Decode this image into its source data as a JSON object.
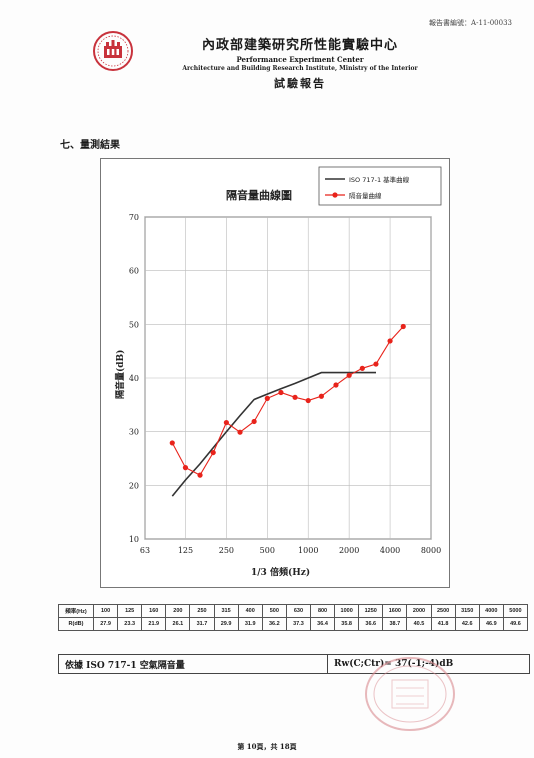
{
  "header": {
    "report_no": "報告書編號：A-11-00033",
    "org_cn": "內政部建築研究所性能實驗中心",
    "org_en_line1": "Performance Experiment Center",
    "org_en_line2": "Architecture and Building Research Institute, Ministry of the Interior",
    "report_title": "試驗報告"
  },
  "section": {
    "title": "七、量測結果"
  },
  "chart_data": {
    "type": "line",
    "title": "隔音量曲線圖",
    "xlabel": "1/3 倍頻(Hz)",
    "ylabel": "隔音量(dB)",
    "x_scale": "log",
    "xlim": [
      63,
      8000
    ],
    "ylim": [
      10,
      70
    ],
    "x_ticks": [
      63,
      125,
      250,
      500,
      1000,
      2000,
      4000,
      8000
    ],
    "x_tick_labels": [
      "63",
      "125",
      "250",
      "500",
      "1000",
      "2000",
      "4000",
      "8000"
    ],
    "y_ticks": [
      10,
      20,
      30,
      40,
      50,
      60,
      70
    ],
    "legend_position": "top-right",
    "series": [
      {
        "name": "ISO 717-1 基準曲線",
        "color": "#333333",
        "marker": "none",
        "x": [
          100,
          125,
          160,
          200,
          250,
          315,
          400,
          500,
          630,
          800,
          1000,
          1250,
          1600,
          2000,
          2500,
          3150
        ],
        "y": [
          18,
          21,
          24,
          27,
          30,
          33,
          36,
          37,
          38,
          39,
          40,
          41,
          41,
          41,
          41,
          41
        ]
      },
      {
        "name": "隔音量曲線",
        "color": "#e8231b",
        "marker": "circle",
        "x": [
          100,
          125,
          160,
          200,
          250,
          315,
          400,
          500,
          630,
          800,
          1000,
          1250,
          1600,
          2000,
          2500,
          3150,
          4000,
          5000
        ],
        "y": [
          27.9,
          23.3,
          21.9,
          26.1,
          31.7,
          29.9,
          31.9,
          36.2,
          37.3,
          36.4,
          35.8,
          36.6,
          38.7,
          40.5,
          41.8,
          42.6,
          46.9,
          49.6
        ]
      }
    ]
  },
  "table": {
    "row1_head": "頻率(Hz)",
    "row2_head": "R(dB)",
    "freqs": [
      "100",
      "125",
      "160",
      "200",
      "250",
      "315",
      "400",
      "500",
      "630",
      "800",
      "1000",
      "1250",
      "1600",
      "2000",
      "2500",
      "3150",
      "4000",
      "5000"
    ],
    "values": [
      "27.9",
      "23.3",
      "21.9",
      "26.1",
      "31.7",
      "29.9",
      "31.9",
      "36.2",
      "37.3",
      "36.4",
      "35.8",
      "36.6",
      "38.7",
      "40.5",
      "41.8",
      "42.6",
      "46.9",
      "49.6"
    ]
  },
  "rating": {
    "label": "依據 ISO 717-1 空氣隔音量",
    "value": "Rw(C;Ctr)= 37(-1;-4)dB"
  },
  "footer": {
    "page": "第 10頁，共 18頁"
  },
  "colors": {
    "stamp": "#d98a90",
    "logo": "#c8323c"
  }
}
